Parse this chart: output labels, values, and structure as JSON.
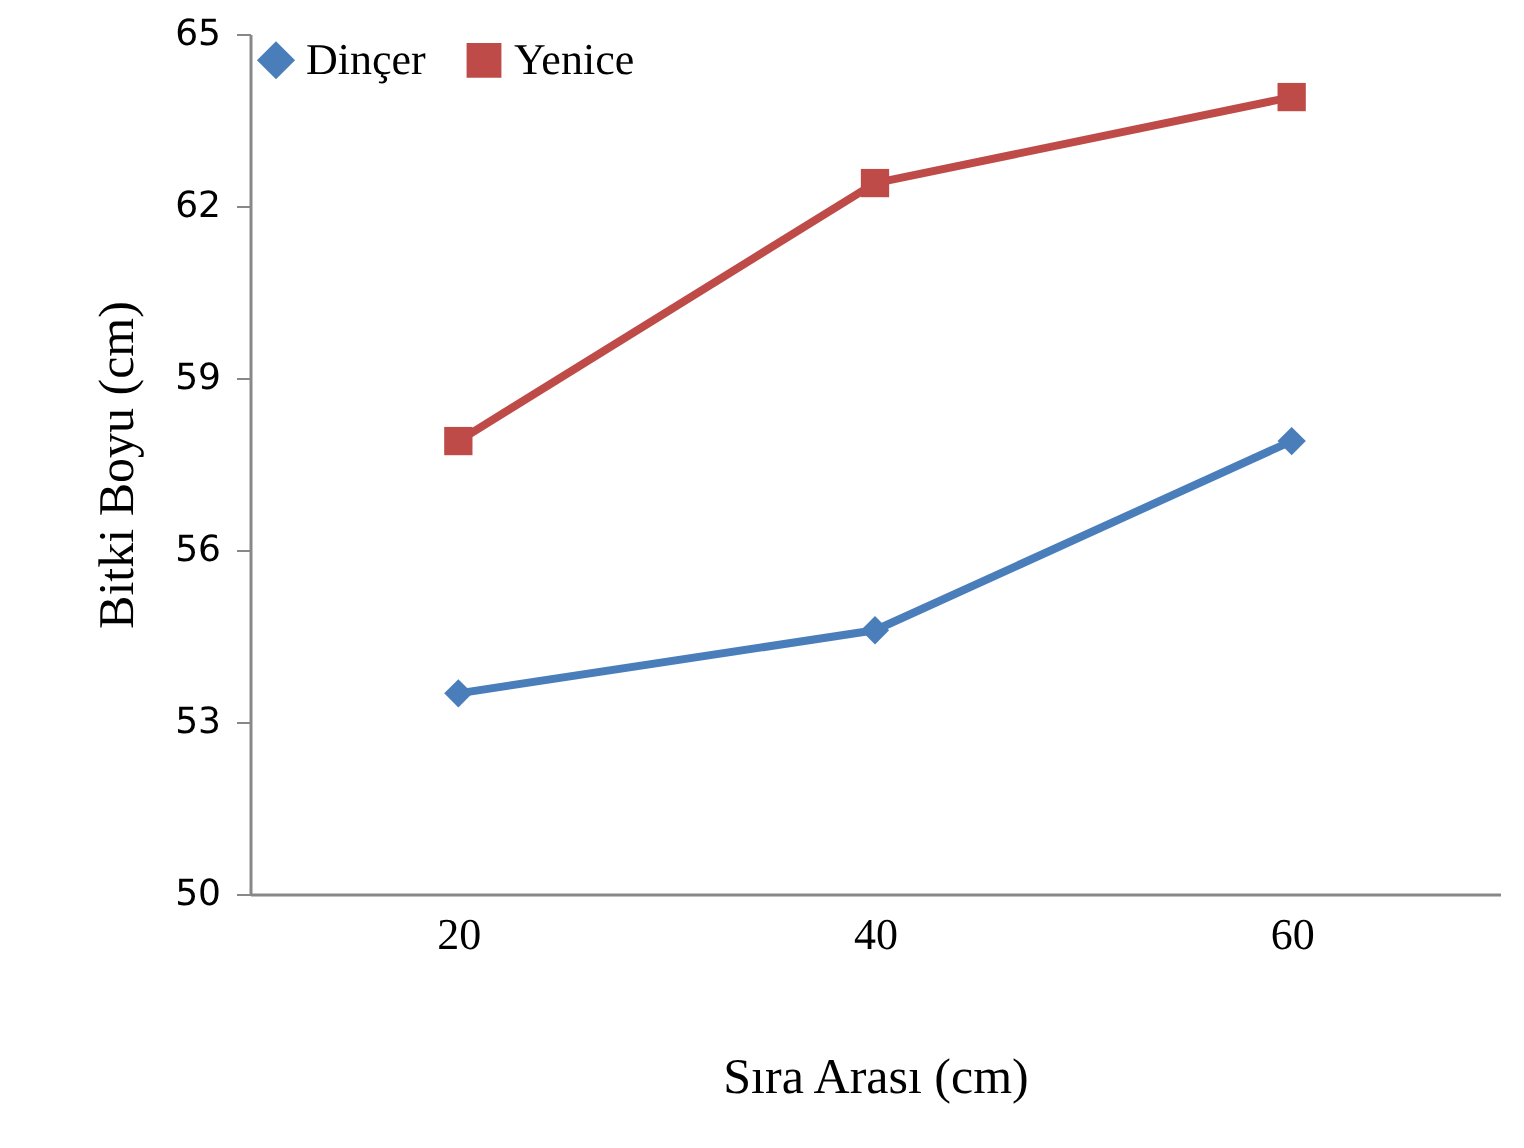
{
  "chart_data": {
    "type": "line",
    "xlabel": "Sıra Arası (cm)",
    "ylabel": "Bitki Boyu (cm)",
    "categories": [
      "20",
      "40",
      "60"
    ],
    "series": [
      {
        "name": "Dinçer",
        "color": "#4a7ebb",
        "marker": "diamond",
        "values": [
          53.5,
          54.6,
          57.9
        ]
      },
      {
        "name": "Yenice",
        "color": "#be4b48",
        "marker": "square",
        "values": [
          57.9,
          62.4,
          63.9
        ]
      }
    ],
    "ylim": [
      50,
      65
    ],
    "yticks": [
      50,
      53,
      56,
      59,
      62,
      65
    ],
    "grid": false,
    "legend": "top left"
  }
}
